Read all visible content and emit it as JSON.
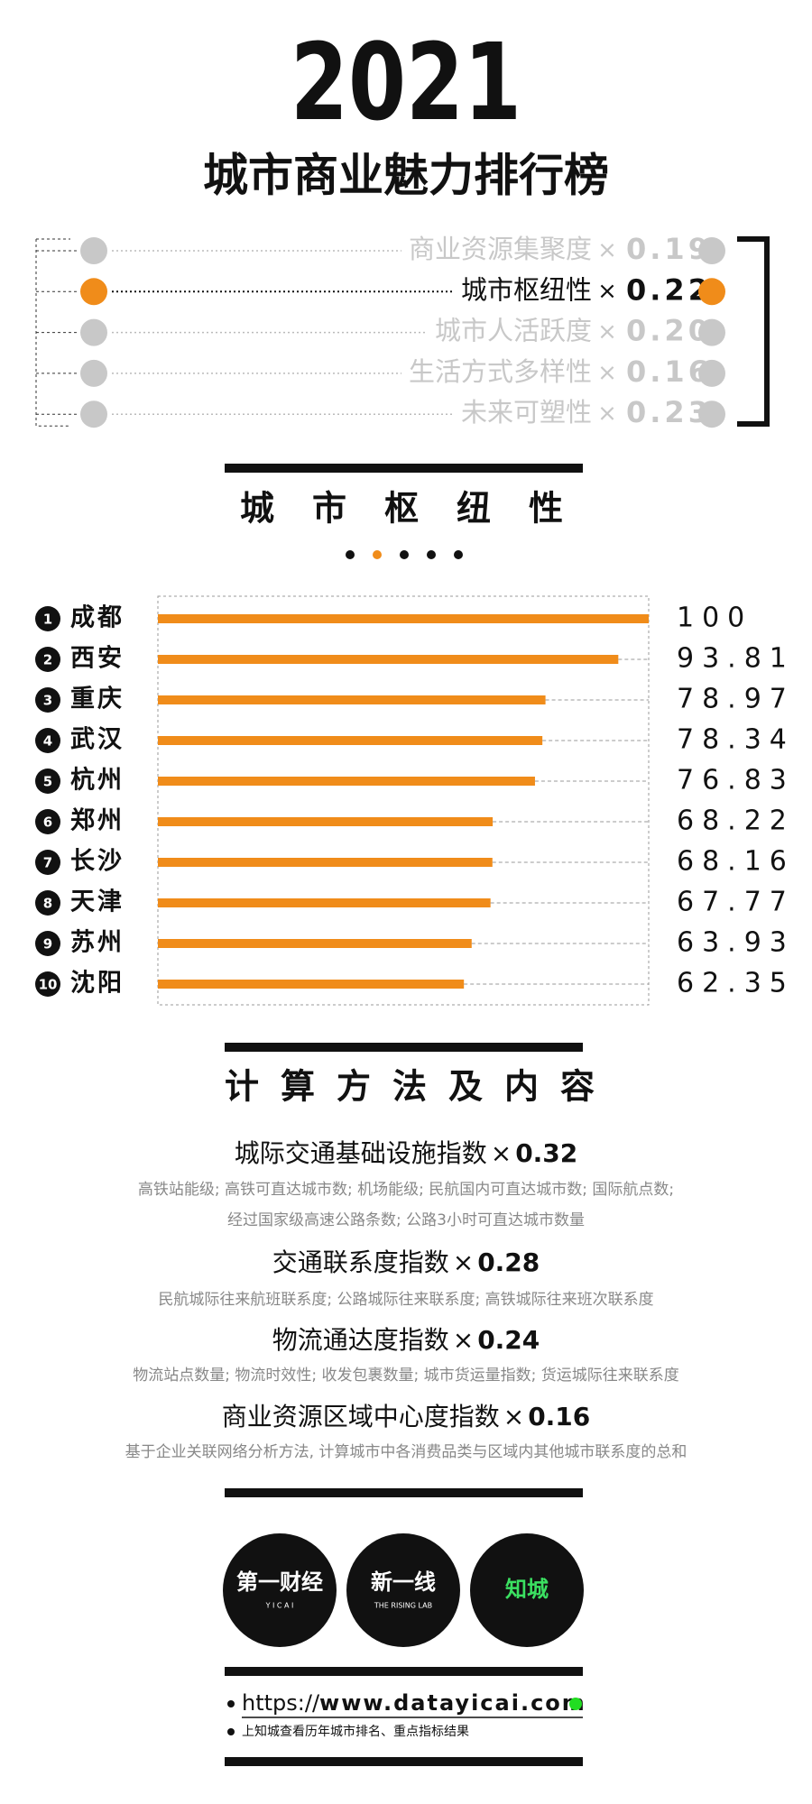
{
  "header": {
    "year": "2021",
    "title": "城市商业魅力排行榜"
  },
  "weights": {
    "multiplier": "×",
    "highlight": 1,
    "highlight_color": "#f08c1a",
    "muted_color": "#c8c8c8",
    "items": [
      {
        "label": "商业资源集聚度",
        "value": "0.19"
      },
      {
        "label": "城市枢纽性",
        "value": "0.22"
      },
      {
        "label": "城市人活跃度",
        "value": "0.20"
      },
      {
        "label": "生活方式多样性",
        "value": "0.16"
      },
      {
        "label": "未来可塑性",
        "value": "0.23"
      }
    ]
  },
  "chart_data": {
    "type": "hbar",
    "title": "城市枢纽性",
    "color": "#f08c1a",
    "ranks": [
      1,
      2,
      3,
      4,
      5,
      6,
      7,
      8,
      9,
      10
    ],
    "categories": [
      "成都",
      "西安",
      "重庆",
      "武汉",
      "杭州",
      "郑州",
      "长沙",
      "天津",
      "苏州",
      "沈阳"
    ],
    "values": [
      100,
      93.81,
      78.97,
      78.34,
      76.83,
      68.22,
      68.16,
      67.77,
      63.93,
      62.35
    ],
    "xlim": [
      0,
      100
    ]
  },
  "methods": {
    "title": "计算方法及内容",
    "multiplier": "×",
    "items": [
      {
        "name": "城际交通基础设施指数",
        "weight": "0.32",
        "lines": [
          "高铁站能级; 高铁可直达城市数; 机场能级; 民航国内可直达城市数; 国际航点数;",
          "经过国家级高速公路条数; 公路3小时可直达城市数量"
        ]
      },
      {
        "name": "交通联系度指数",
        "weight": "0.28",
        "lines": [
          "民航城际往来航班联系度; 公路城际往来联系度; 高铁城际往来班次联系度"
        ]
      },
      {
        "name": "物流通达度指数",
        "weight": "0.24",
        "lines": [
          "物流站点数量; 物流时效性; 收发包裹数量; 城市货运量指数; 货运城际往来联系度"
        ]
      },
      {
        "name": "商业资源区域中心度指数",
        "weight": "0.16",
        "lines": [
          "基于企业关联网络分析方法, 计算城市中各消费品类与区域内其他城市联系度的总和"
        ]
      }
    ]
  },
  "logos": [
    {
      "main": "第一财经",
      "sub": "Y I C A I"
    },
    {
      "main": "新一线",
      "sub": "THE RISING LAB"
    },
    {
      "main": "知城",
      "sub": null
    }
  ],
  "footer": {
    "url_prefix": "https://",
    "url_domain": "www.datayicai.com",
    "note": "上知城查看历年城市排名、重点指标结果"
  }
}
